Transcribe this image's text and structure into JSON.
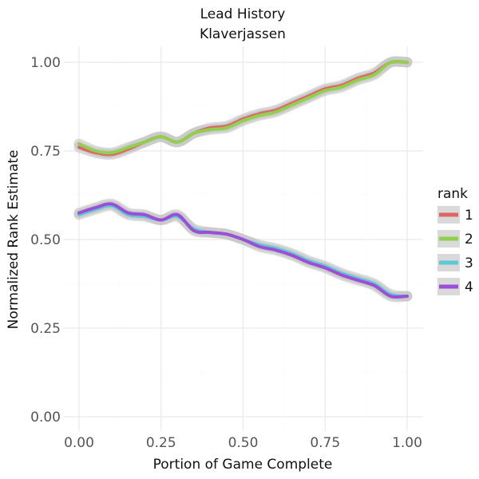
{
  "chart_data": {
    "type": "line",
    "title": "Lead History",
    "subtitle": "Klaverjassen",
    "xlabel": "Portion of Game Complete",
    "ylabel": "Normalized Rank Estimate",
    "xlim": [
      0,
      1
    ],
    "ylim": [
      0,
      1
    ],
    "x_ticks": [
      "0.00",
      "0.25",
      "0.50",
      "0.75",
      "1.00"
    ],
    "y_ticks": [
      "0.00",
      "0.25",
      "0.50",
      "0.75",
      "1.00"
    ],
    "grid": true,
    "legend": {
      "title": "rank",
      "position": "right"
    },
    "x": [
      0,
      0.05,
      0.1,
      0.15,
      0.2,
      0.25,
      0.3,
      0.35,
      0.4,
      0.45,
      0.5,
      0.55,
      0.6,
      0.65,
      0.7,
      0.75,
      0.8,
      0.85,
      0.9,
      0.95,
      1.0
    ],
    "series": [
      {
        "name": "1",
        "color": "#e06666",
        "values": [
          0.76,
          0.745,
          0.74,
          0.755,
          0.775,
          0.79,
          0.775,
          0.8,
          0.815,
          0.82,
          0.84,
          0.855,
          0.865,
          0.885,
          0.905,
          0.925,
          0.935,
          0.955,
          0.97,
          1.0,
          1.0
        ]
      },
      {
        "name": "2",
        "color": "#8fd14f",
        "values": [
          0.77,
          0.75,
          0.745,
          0.76,
          0.775,
          0.79,
          0.775,
          0.8,
          0.81,
          0.815,
          0.835,
          0.85,
          0.86,
          0.88,
          0.9,
          0.92,
          0.93,
          0.95,
          0.965,
          1.0,
          1.0
        ]
      },
      {
        "name": "3",
        "color": "#5bc8d4",
        "values": [
          0.57,
          0.585,
          0.595,
          0.57,
          0.565,
          0.555,
          0.565,
          0.53,
          0.52,
          0.515,
          0.5,
          0.485,
          0.475,
          0.46,
          0.44,
          0.425,
          0.405,
          0.39,
          0.375,
          0.345,
          0.34
        ]
      },
      {
        "name": "4",
        "color": "#9b4fd8",
        "values": [
          0.575,
          0.59,
          0.6,
          0.575,
          0.57,
          0.555,
          0.57,
          0.525,
          0.52,
          0.515,
          0.5,
          0.48,
          0.47,
          0.455,
          0.435,
          0.42,
          0.4,
          0.385,
          0.37,
          0.34,
          0.34
        ]
      }
    ]
  }
}
